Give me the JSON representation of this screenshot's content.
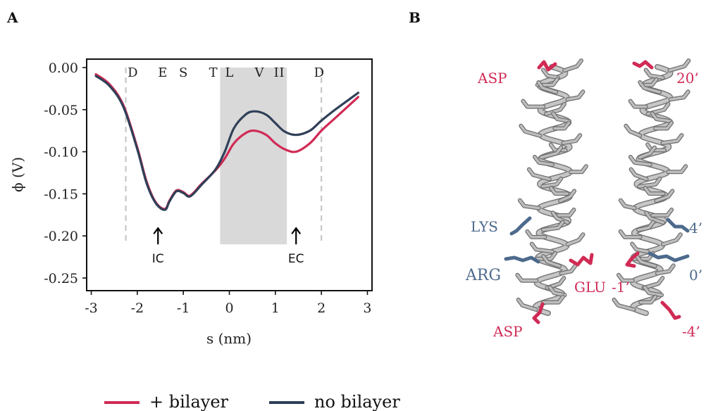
{
  "panels": {
    "a": "A",
    "b": "B"
  },
  "chart_data": {
    "type": "line",
    "xlabel": "s (nm)",
    "ylabel": "ϕ (V)",
    "xlim": [
      -3.1,
      3.1
    ],
    "ylim": [
      -0.265,
      0.01
    ],
    "xticks": [
      -3,
      -2,
      -1,
      0,
      1,
      2,
      3
    ],
    "xtick_labels": [
      "-3",
      "-2",
      "-1",
      "0",
      "1",
      "2",
      "3"
    ],
    "yticks": [
      0.0,
      -0.05,
      -0.1,
      -0.15,
      -0.2,
      -0.25
    ],
    "ytick_labels": [
      "0.00",
      "-0.05",
      "-0.10",
      "-0.15",
      "-0.20",
      "-0.25"
    ],
    "grid": false,
    "legend_position": "bottom",
    "shaded_region": {
      "x": [
        -0.2,
        1.25
      ],
      "y": [
        -0.21,
        0.0
      ],
      "color": "#d9d9d9"
    },
    "boundary_lines": {
      "x": [
        -2.25,
        2.0
      ],
      "y": [
        -0.21,
        0.0
      ]
    },
    "residue_labels": [
      {
        "text": "D",
        "x": -2.1
      },
      {
        "text": "E",
        "x": -1.45
      },
      {
        "text": "S",
        "x": -1.0
      },
      {
        "text": "T",
        "x": -0.35
      },
      {
        "text": "L",
        "x": 0.0
      },
      {
        "text": "V",
        "x": 0.65
      },
      {
        "text": "I",
        "x": 1.02
      },
      {
        "text": "I",
        "x": 1.14
      },
      {
        "text": "D",
        "x": 1.95
      }
    ],
    "annotations": [
      {
        "text": "IC",
        "x": -1.55,
        "y": -0.2
      },
      {
        "text": "EC",
        "x": 1.45,
        "y": -0.2
      }
    ],
    "series": [
      {
        "name": "+ bilayer",
        "color": "#d02b55",
        "x": [
          -2.9,
          -2.6,
          -2.3,
          -2.0,
          -1.8,
          -1.6,
          -1.4,
          -1.3,
          -1.15,
          -1.0,
          -0.85,
          -0.6,
          -0.3,
          -0.1,
          0.1,
          0.35,
          0.55,
          0.8,
          1.0,
          1.2,
          1.45,
          1.75,
          2.0,
          2.3,
          2.6,
          2.8
        ],
        "y": [
          -0.008,
          -0.02,
          -0.045,
          -0.095,
          -0.135,
          -0.16,
          -0.168,
          -0.158,
          -0.146,
          -0.148,
          -0.152,
          -0.138,
          -0.122,
          -0.108,
          -0.09,
          -0.078,
          -0.075,
          -0.08,
          -0.09,
          -0.097,
          -0.1,
          -0.09,
          -0.075,
          -0.06,
          -0.045,
          -0.035
        ]
      },
      {
        "name": "no bilayer",
        "color": "#2f4058",
        "x": [
          -2.9,
          -2.6,
          -2.3,
          -2.0,
          -1.8,
          -1.6,
          -1.4,
          -1.3,
          -1.15,
          -1.0,
          -0.85,
          -0.6,
          -0.3,
          -0.1,
          0.1,
          0.35,
          0.55,
          0.8,
          1.0,
          1.2,
          1.45,
          1.75,
          2.0,
          2.3,
          2.6,
          2.8
        ],
        "y": [
          -0.01,
          -0.022,
          -0.047,
          -0.097,
          -0.137,
          -0.161,
          -0.169,
          -0.159,
          -0.147,
          -0.149,
          -0.153,
          -0.139,
          -0.121,
          -0.1,
          -0.072,
          -0.056,
          -0.052,
          -0.056,
          -0.066,
          -0.076,
          -0.08,
          -0.075,
          -0.063,
          -0.05,
          -0.038,
          -0.03
        ]
      }
    ]
  },
  "molecule": {
    "left_labels": [
      {
        "text": "ASP",
        "color": "#d02b55"
      },
      {
        "text": "LYS",
        "color": "#4d6a8c"
      },
      {
        "text": "ARG",
        "color": "#4d6a8c"
      },
      {
        "text": "GLU",
        "color": "#d02b55"
      },
      {
        "text": "ASP",
        "color": "#d02b55"
      }
    ],
    "right_labels": [
      {
        "text": "20’",
        "color": "#d02b55"
      },
      {
        "text": "4’",
        "color": "#4d6a8c"
      },
      {
        "text": "0’",
        "color": "#4d6a8c"
      },
      {
        "text": "-1’",
        "color": "#d02b55"
      },
      {
        "text": "-4’",
        "color": "#d02b55"
      }
    ]
  }
}
